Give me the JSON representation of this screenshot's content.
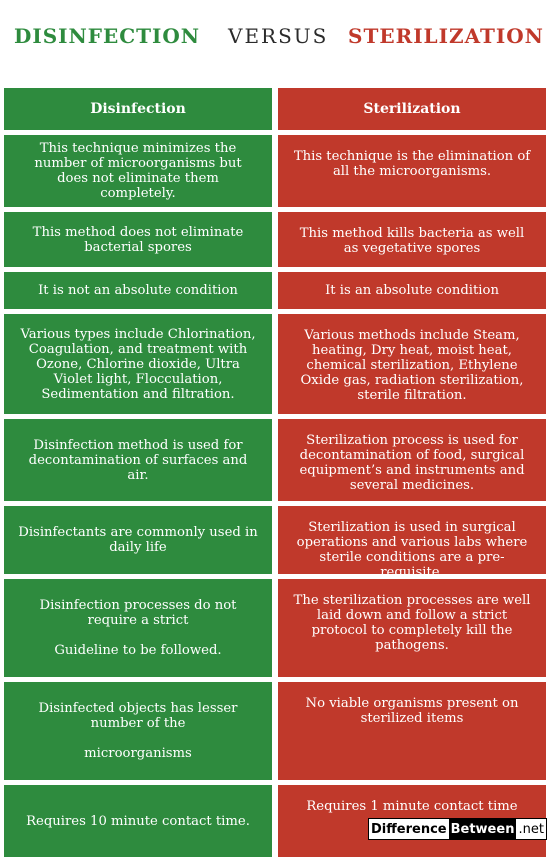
{
  "header": {
    "left": "DISINFECTION",
    "middle": "VERSUS",
    "right": "STERILIZATION"
  },
  "columns": {
    "left": "Disinfection",
    "right": "Sterilization"
  },
  "rows": [
    {
      "left": [
        "This technique minimizes the number of microorganisms but does not eliminate them completely."
      ],
      "right": [
        "This technique is the elimination of all the microorganisms."
      ]
    },
    {
      "left": [
        "This method does not eliminate bacterial spores"
      ],
      "right": [
        "This method kills bacteria as well as vegetative spores"
      ]
    },
    {
      "left": [
        "It is not an absolute condition"
      ],
      "right": [
        "It is an absolute condition"
      ]
    },
    {
      "left": [
        "Various types include Chlorination, Coagulation, and treatment with Ozone, Chlorine dioxide, Ultra Violet light, Flocculation, Sedimentation and filtration."
      ],
      "right": [
        "Various methods include Steam, heating, Dry heat, moist heat, chemical sterilization, Ethylene Oxide gas, radiation sterilization, sterile filtration."
      ]
    },
    {
      "left": [
        "Disinfection method is used for decontamination of surfaces and air."
      ],
      "right": [
        "Sterilization process is used for decontamination of food, surgical equipment’s and instruments and several medicines."
      ]
    },
    {
      "left": [
        "Disinfectants are commonly used in daily life"
      ],
      "right": [
        "Sterilization is used in surgical operations and various labs where sterile conditions are a pre-requisite."
      ]
    },
    {
      "left": [
        "Disinfection processes do not require a strict",
        "Guideline to be followed."
      ],
      "right": [
        "The sterilization processes are well laid down and follow a strict protocol to completely kill the pathogens."
      ]
    },
    {
      "left": [
        "Disinfected objects has lesser number of the",
        "microorganisms"
      ],
      "right": [
        "No viable organisms present on sterilized items"
      ]
    },
    {
      "left": [
        "Requires 10 minute contact time."
      ],
      "right": [
        "Requires 1 minute contact time"
      ]
    }
  ],
  "logo": {
    "part1": "Difference",
    "part2": "Between",
    "part3": ".net"
  },
  "colors": {
    "green": "#2e8b3e",
    "red": "#c0392b"
  }
}
